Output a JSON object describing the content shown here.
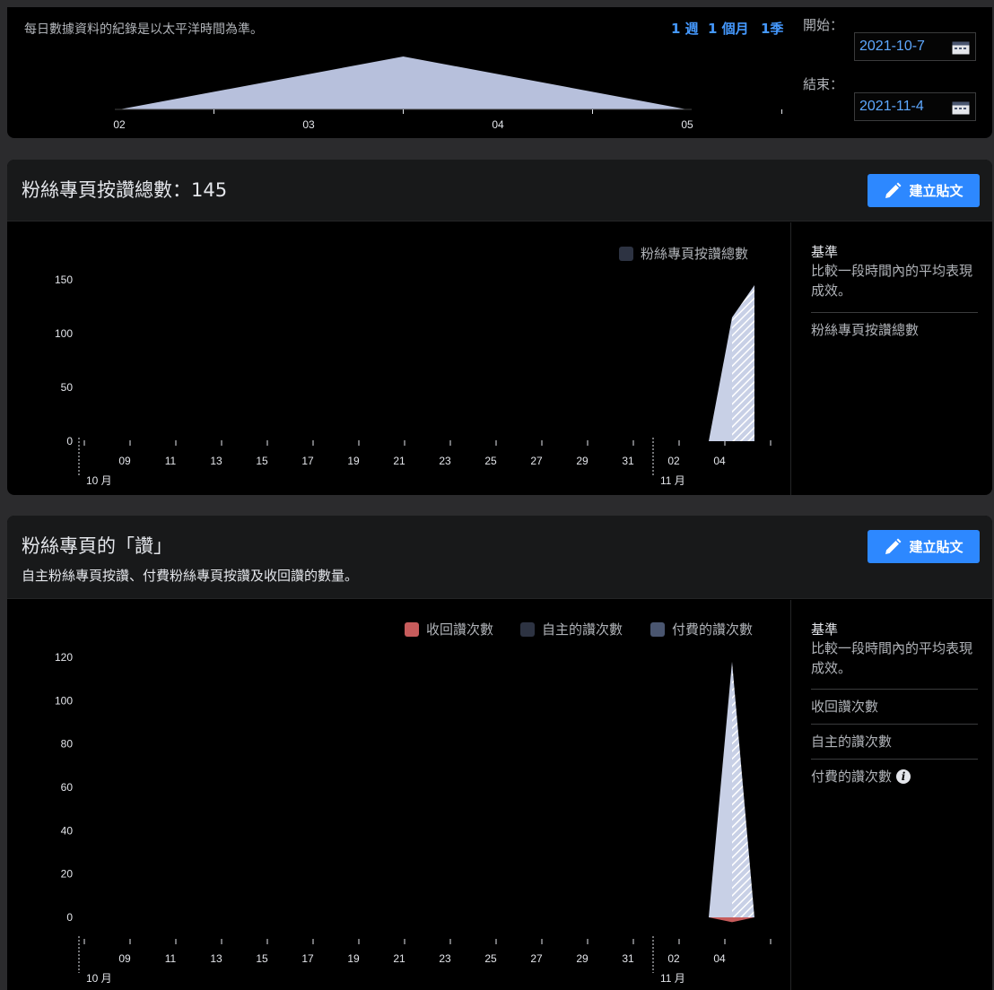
{
  "range": {
    "note": "每日數據資料的紀錄是以太平洋時間為準。",
    "presets": [
      "1 週",
      "1 個月",
      "1季"
    ],
    "start_label": "開始：",
    "start_date": "2021-10-7",
    "end_label": "結束：",
    "end_date": "2021-11-4",
    "brush_ticks": [
      "02",
      "03",
      "04",
      "05"
    ]
  },
  "likes_card": {
    "title": "粉絲專頁按讚總數：145",
    "create_button": "建立貼文",
    "legend": [
      {
        "label": "粉絲專頁按讚總數",
        "color": "#2d3342"
      }
    ],
    "benchmark": {
      "title": "基準",
      "desc": "比較一段時間內的平均表現成效。",
      "items": [
        "粉絲專頁按讚總數"
      ]
    }
  },
  "reactions_card": {
    "title": "粉絲專頁的「讚」",
    "subtitle": "自主粉絲專頁按讚、付費粉絲專頁按讚及收回讚的數量。",
    "create_button": "建立貼文",
    "legend": [
      {
        "label": "收回讚次數",
        "color": "#c75c5c"
      },
      {
        "label": "自主的讚次數",
        "color": "#2d3342"
      },
      {
        "label": "付費的讚次數",
        "color": "#4a5670"
      }
    ],
    "benchmark": {
      "title": "基準",
      "desc": "比較一段時間內的平均表現成效。",
      "items": [
        "收回讚次數",
        "自主的讚次數",
        "付費的讚次數"
      ]
    }
  },
  "chart_data": [
    {
      "type": "area",
      "title": "粉絲專頁按讚總數",
      "x_ticks": [
        "09",
        "11",
        "13",
        "15",
        "17",
        "19",
        "21",
        "23",
        "25",
        "27",
        "29",
        "31",
        "02",
        "04"
      ],
      "month_labels": [
        "10 月",
        "11 月"
      ],
      "y_ticks": [
        0,
        50,
        100,
        150
      ],
      "ylim": [
        0,
        150
      ],
      "series": [
        {
          "name": "粉絲專頁按讚總數",
          "x": [
            "11-03",
            "11-04",
            "11-05"
          ],
          "values": [
            0,
            115,
            145
          ],
          "color": "#c8d0e6"
        }
      ]
    },
    {
      "type": "area",
      "title": "粉絲專頁的「讚」",
      "x_ticks": [
        "09",
        "11",
        "13",
        "15",
        "17",
        "19",
        "21",
        "23",
        "25",
        "27",
        "29",
        "31",
        "02",
        "04"
      ],
      "month_labels": [
        "10 月",
        "11 月"
      ],
      "y_ticks": [
        0,
        20,
        40,
        60,
        80,
        100,
        120
      ],
      "ylim": [
        0,
        120
      ],
      "series": [
        {
          "name": "自主的讚次數",
          "x": [
            "11-03",
            "11-04",
            "11-05"
          ],
          "values": [
            0,
            118,
            0
          ],
          "color": "#c8d0e6"
        },
        {
          "name": "收回讚次數",
          "x": [
            "11-03",
            "11-04",
            "11-05"
          ],
          "values": [
            0,
            -1,
            0
          ],
          "color": "#c75c5c"
        },
        {
          "name": "付費的讚次數",
          "x": [
            "11-03",
            "11-04",
            "11-05"
          ],
          "values": [
            0,
            0,
            0
          ],
          "color": "#4a5670"
        }
      ]
    }
  ]
}
